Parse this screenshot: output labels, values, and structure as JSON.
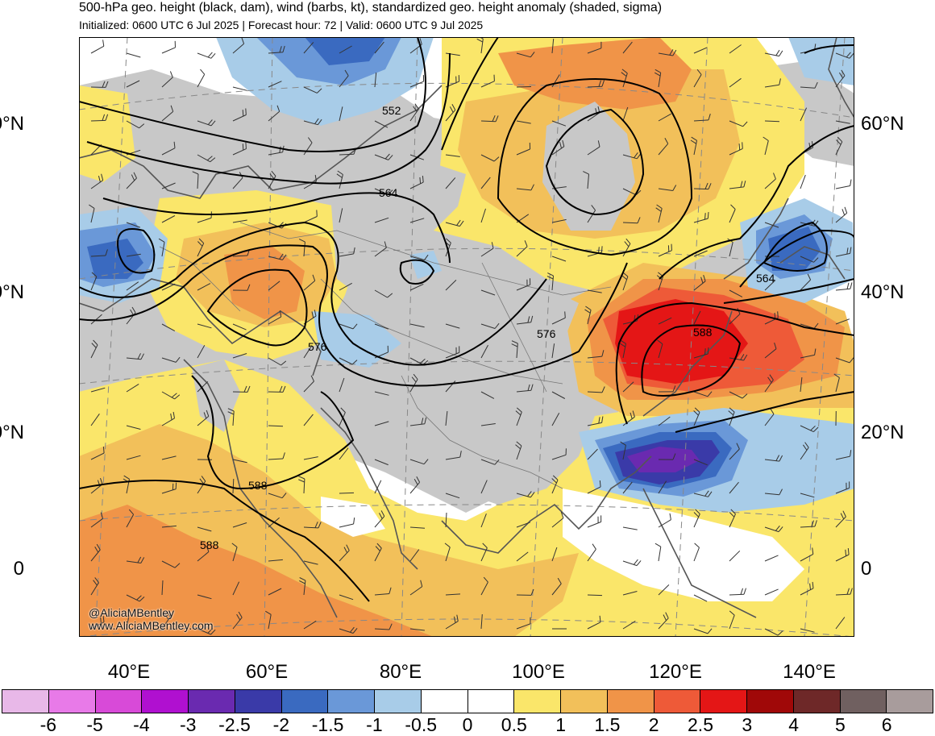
{
  "header": {
    "title": "500-hPa geo. height (black, dam), wind (barbs, kt), standardized geo. height anomaly (shaded, sigma)",
    "subtitle": "Initialized: 0600 UTC 6 Jul 2025 | Forecast hour: 72 | Valid: 0600 UTC 9 Jul 2025"
  },
  "map": {
    "lat_labels": [
      "60°N",
      "40°N",
      "20°N",
      "0"
    ],
    "lon_labels": [
      "40°E",
      "60°E",
      "80°E",
      "100°E",
      "120°E",
      "140°E"
    ],
    "contour_labels": [
      "552",
      "564",
      "564",
      "576",
      "576",
      "588",
      "588",
      "588"
    ],
    "credits": [
      "@AliciaMBentley",
      "www.AliciaMBentley.com"
    ],
    "colors": {
      "land": "#c8c8c8",
      "coast": "#555555",
      "contour": "#000000",
      "ocean": "#ffffff"
    }
  },
  "colorbar": {
    "labels": [
      "-6",
      "-5",
      "-4",
      "-3",
      "-2.5",
      "-2",
      "-1.5",
      "-1",
      "-0.5",
      "0",
      "0.5",
      "1",
      "1.5",
      "2",
      "2.5",
      "3",
      "4",
      "5",
      "6"
    ],
    "colors": [
      "#e8b8e8",
      "#e87ae8",
      "#d84ad8",
      "#b010d0",
      "#6a2ab0",
      "#3a3aa8",
      "#3a6ac0",
      "#6a98d8",
      "#a8cce8",
      "#ffffff",
      "#ffffff",
      "#fae66a",
      "#f2c05a",
      "#f09448",
      "#ee5a38",
      "#e41616",
      "#a00808",
      "#6e2828",
      "#706060",
      "#a89c9c"
    ]
  }
}
